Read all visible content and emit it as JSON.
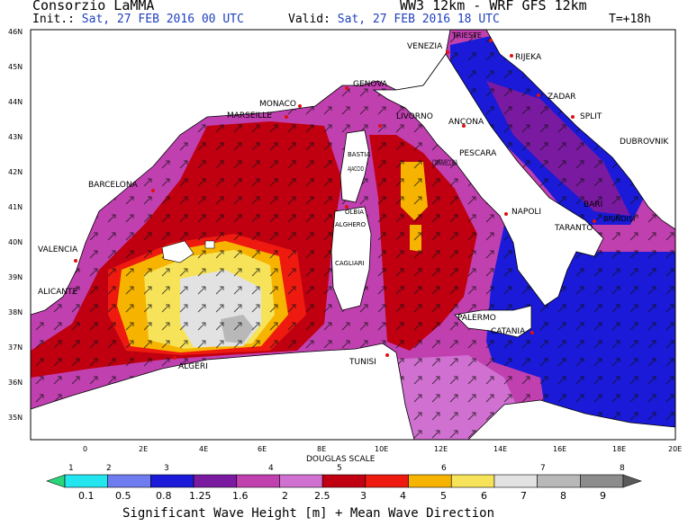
{
  "header": {
    "org": "Consorzio LaMMA",
    "model": "WW3 12km - WRF GFS 12km",
    "init_label": "Init.:",
    "init_value": "Sat, 27 FEB 2016  00 UTC",
    "valid_label": "Valid:",
    "valid_value": "Sat, 27 FEB 2016  18 UTC",
    "lead": "T=+18h"
  },
  "axes": {
    "lat_labels": [
      "46N",
      "45N",
      "44N",
      "43N",
      "42N",
      "41N",
      "40N",
      "39N",
      "38N",
      "37N",
      "36N",
      "35N"
    ],
    "lon_labels": [
      "0",
      "2E",
      "4E",
      "6E",
      "8E",
      "10E",
      "12E",
      "14E",
      "16E",
      "18E",
      "20E"
    ]
  },
  "cities": [
    "VENEZIA",
    "TRIESTE",
    "RIJEKA",
    "ZADAR",
    "SPLIT",
    "DUBROVNIK",
    "GENOVA",
    "MONACO",
    "MARSEILLE",
    "LIVORNO",
    "ANCONA",
    "PESCARA",
    "BASTIA",
    "AJACCIO",
    "CIVITAVECCHIA",
    "BARCELONA",
    "OLBIA",
    "ALGHERO",
    "BARI",
    "BRINDISI",
    "TARANTO",
    "NAPOLI",
    "VALENCIA",
    "ALICANTE",
    "CAGLIARI",
    "PALERMO",
    "CATANIA",
    "TUNISI",
    "ALGERI"
  ],
  "colorbar": {
    "title_top": "DOUGLAS SCALE",
    "douglas": [
      "1",
      "2",
      "3",
      "4",
      "5",
      "6",
      "7",
      "8"
    ],
    "values": [
      "0.1",
      "0.5",
      "0.8",
      "1.25",
      "1.6",
      "2",
      "2.5",
      "3",
      "4",
      "5",
      "6",
      "7",
      "8",
      "9"
    ],
    "colors": [
      "#2ad67a",
      "#22e5f0",
      "#6f7cf0",
      "#1a1ad8",
      "#7a1aa0",
      "#c040b0",
      "#d070d0",
      "#c00010",
      "#ee1a10",
      "#f6b400",
      "#f7e35a",
      "#e2e2e2",
      "#b8b8b8",
      "#8c8c8c",
      "#5a5a5a"
    ],
    "title": "Significant Wave Height [m] + Mean Wave Direction"
  }
}
